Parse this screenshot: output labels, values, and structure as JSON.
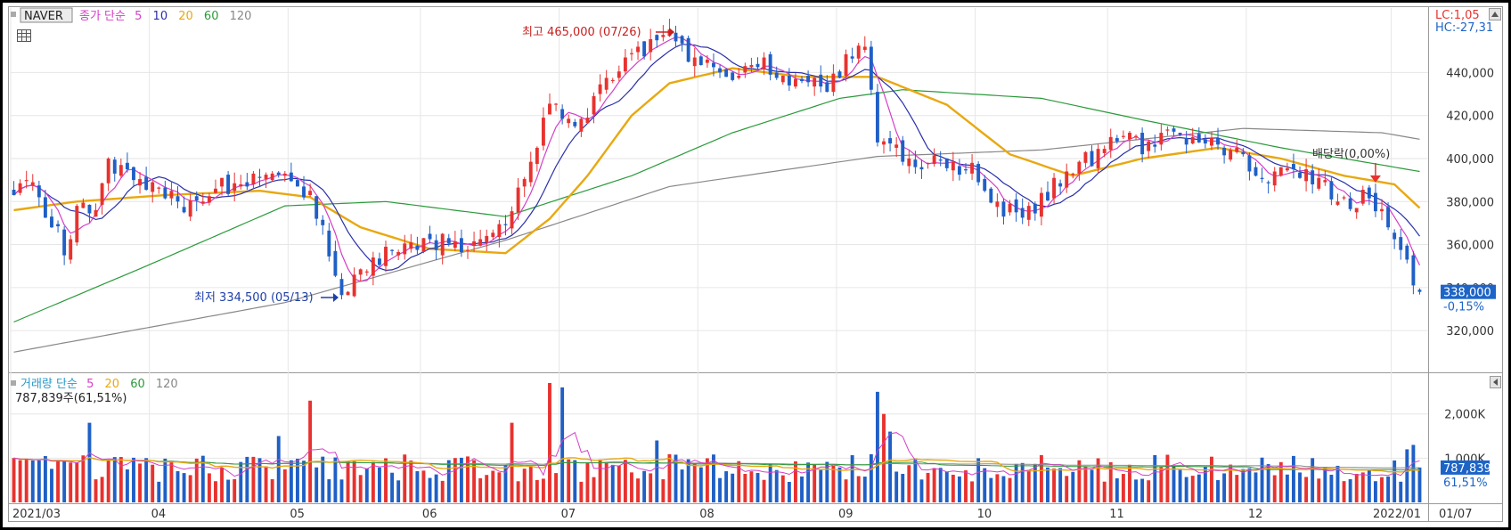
{
  "ticker": "NAVER",
  "price_legend": {
    "label": "종가 단순",
    "ma_periods": [
      "5",
      "10",
      "20",
      "60",
      "120"
    ]
  },
  "volume_legend": {
    "label": "거래량 단순",
    "ma_periods": [
      "5",
      "20",
      "60",
      "120"
    ],
    "current": "787,839주(61,51%)"
  },
  "lc_hc": {
    "lc": "LC:1,05",
    "hc": "HC:-27,31"
  },
  "annotations": {
    "high": "최고 465,000 (07/26)",
    "low": "최저 334,500 (05/13)",
    "dividend": "배당락(0,00%)"
  },
  "price_badge": {
    "value": "338,000",
    "change": "-0,15%"
  },
  "volume_badge": {
    "value": "787,839",
    "pct": "61,51%"
  },
  "colors": {
    "up": "#e8322f",
    "down": "#1f5fc6",
    "ma5": "#d43fc8",
    "ma10": "#2a2fa8",
    "ma20": "#e8a810",
    "ma60": "#2a9a3a",
    "ma120": "#888888",
    "badge": "#1d64c8"
  },
  "chart_data": [
    {
      "type": "candlestick",
      "title": "",
      "y_ticks": [
        320000,
        340000,
        360000,
        380000,
        400000,
        420000,
        440000
      ],
      "y_tick_labels": [
        "320,000",
        "340,000",
        "360,000",
        "380,000",
        "400,000",
        "420,000",
        "440,000"
      ],
      "ylim": [
        301000,
        470000
      ],
      "x_labels": [
        "2021/03",
        "04",
        "05",
        "06",
        "07",
        "08",
        "09",
        "10",
        "11",
        "12",
        "2022/01",
        "01/07"
      ],
      "x_label_months": [
        "2021-03",
        "2021-04",
        "2021-05",
        "2021-06",
        "2021-07",
        "2021-08",
        "2021-09",
        "2021-10",
        "2021-11",
        "2021-12",
        "2022-01"
      ],
      "close_anchors": [
        [
          "2021-03-02",
          385000
        ],
        [
          "2021-03-05",
          388000
        ],
        [
          "2021-03-10",
          370000
        ],
        [
          "2021-03-12",
          358000
        ],
        [
          "2021-03-16",
          375000
        ],
        [
          "2021-03-19",
          380000
        ],
        [
          "2021-03-23",
          398000
        ],
        [
          "2021-03-26",
          395000
        ],
        [
          "2021-03-31",
          385000
        ],
        [
          "2021-04-05",
          383000
        ],
        [
          "2021-04-09",
          378000
        ],
        [
          "2021-04-14",
          385000
        ],
        [
          "2021-04-20",
          388000
        ],
        [
          "2021-04-26",
          392000
        ],
        [
          "2021-04-30",
          390000
        ],
        [
          "2021-05-06",
          382000
        ],
        [
          "2021-05-10",
          368000
        ],
        [
          "2021-05-13",
          338000
        ],
        [
          "2021-05-18",
          345000
        ],
        [
          "2021-05-24",
          355000
        ],
        [
          "2021-05-31",
          358000
        ],
        [
          "2021-06-04",
          362000
        ],
        [
          "2021-06-09",
          360000
        ],
        [
          "2021-06-14",
          365000
        ],
        [
          "2021-06-18",
          372000
        ],
        [
          "2021-06-22",
          385000
        ],
        [
          "2021-06-25",
          405000
        ],
        [
          "2021-06-29",
          425000
        ],
        [
          "2021-07-02",
          415000
        ],
        [
          "2021-07-07",
          420000
        ],
        [
          "2021-07-12",
          438000
        ],
        [
          "2021-07-16",
          448000
        ],
        [
          "2021-07-21",
          452000
        ],
        [
          "2021-07-26",
          460000
        ],
        [
          "2021-07-29",
          448000
        ],
        [
          "2021-08-03",
          442000
        ],
        [
          "2021-08-09",
          438000
        ],
        [
          "2021-08-13",
          445000
        ],
        [
          "2021-08-19",
          440000
        ],
        [
          "2021-08-24",
          432000
        ],
        [
          "2021-08-30",
          435000
        ],
        [
          "2021-09-03",
          448000
        ],
        [
          "2021-09-07",
          450000
        ],
        [
          "2021-09-09",
          408000
        ],
        [
          "2021-09-15",
          400000
        ],
        [
          "2021-09-24",
          398000
        ],
        [
          "2021-09-30",
          395000
        ],
        [
          "2021-10-06",
          378000
        ],
        [
          "2021-10-12",
          372000
        ],
        [
          "2021-10-18",
          385000
        ],
        [
          "2021-10-22",
          395000
        ],
        [
          "2021-10-28",
          402000
        ],
        [
          "2021-11-02",
          410000
        ],
        [
          "2021-11-08",
          405000
        ],
        [
          "2021-11-12",
          410000
        ],
        [
          "2021-11-18",
          408000
        ],
        [
          "2021-11-24",
          405000
        ],
        [
          "2021-11-30",
          400000
        ],
        [
          "2021-12-03",
          388000
        ],
        [
          "2021-12-08",
          395000
        ],
        [
          "2021-12-13",
          392000
        ],
        [
          "2021-12-17",
          386000
        ],
        [
          "2021-12-22",
          378000
        ],
        [
          "2021-12-27",
          382000
        ],
        [
          "2021-12-30",
          378000
        ],
        [
          "2022-01-04",
          360000
        ],
        [
          "2022-01-07",
          338000
        ]
      ],
      "ma20_anchors": [
        [
          "2021-03-02",
          376000
        ],
        [
          "2021-03-16",
          380000
        ],
        [
          "2021-04-05",
          383000
        ],
        [
          "2021-04-26",
          385000
        ],
        [
          "2021-05-06",
          382000
        ],
        [
          "2021-05-18",
          368000
        ],
        [
          "2021-06-02",
          358000
        ],
        [
          "2021-06-18",
          356000
        ],
        [
          "2021-06-29",
          372000
        ],
        [
          "2021-07-07",
          392000
        ],
        [
          "2021-07-16",
          420000
        ],
        [
          "2021-07-26",
          435000
        ],
        [
          "2021-08-09",
          442000
        ],
        [
          "2021-08-24",
          438000
        ],
        [
          "2021-09-09",
          438000
        ],
        [
          "2021-09-24",
          425000
        ],
        [
          "2021-10-08",
          402000
        ],
        [
          "2021-10-22",
          392000
        ],
        [
          "2021-11-08",
          400000
        ],
        [
          "2021-11-24",
          405000
        ],
        [
          "2021-12-08",
          400000
        ],
        [
          "2021-12-22",
          392000
        ],
        [
          "2022-01-03",
          388000
        ],
        [
          "2022-01-07",
          377000
        ]
      ],
      "ma60_anchors": [
        [
          "2021-03-02",
          324000
        ],
        [
          "2021-03-31",
          350000
        ],
        [
          "2021-04-30",
          378000
        ],
        [
          "2021-05-24",
          380000
        ],
        [
          "2021-06-18",
          373000
        ],
        [
          "2021-07-16",
          392000
        ],
        [
          "2021-08-09",
          412000
        ],
        [
          "2021-09-01",
          428000
        ],
        [
          "2021-09-15",
          432000
        ],
        [
          "2021-10-15",
          428000
        ],
        [
          "2021-11-08",
          418000
        ],
        [
          "2021-12-08",
          405000
        ],
        [
          "2022-01-07",
          394000
        ]
      ],
      "ma120_anchors": [
        [
          "2021-03-02",
          310000
        ],
        [
          "2021-04-30",
          333000
        ],
        [
          "2021-06-18",
          362000
        ],
        [
          "2021-07-26",
          387000
        ],
        [
          "2021-09-09",
          401000
        ],
        [
          "2021-10-15",
          404000
        ],
        [
          "2021-11-30",
          414000
        ],
        [
          "2021-12-30",
          412000
        ],
        [
          "2022-01-07",
          409000
        ]
      ],
      "last_close": 338000,
      "high_point": {
        "date": "2021-07-26",
        "value": 465000
      },
      "low_point": {
        "date": "2021-05-13",
        "value": 334500
      },
      "dividend_date": "2021-12-29"
    },
    {
      "type": "bar",
      "title": "",
      "y_ticks": [
        1000000,
        2000000
      ],
      "y_tick_labels": [
        "1,000K",
        "2,000K"
      ],
      "ylim": [
        0,
        2900000
      ],
      "vol_base": 840000,
      "spikes": [
        [
          "2021-03-18",
          1800000
        ],
        [
          "2021-04-29",
          1500000
        ],
        [
          "2021-05-06",
          2300000
        ],
        [
          "2021-06-21",
          1800000
        ],
        [
          "2021-06-29",
          2700000
        ],
        [
          "2021-07-01",
          2600000
        ],
        [
          "2021-07-22",
          1400000
        ],
        [
          "2021-09-09",
          2500000
        ],
        [
          "2021-09-10",
          2000000
        ],
        [
          "2021-09-13",
          1600000
        ],
        [
          "2022-01-05",
          1200000
        ],
        [
          "2022-01-06",
          1300000
        ]
      ],
      "last_volume": 787839
    }
  ]
}
